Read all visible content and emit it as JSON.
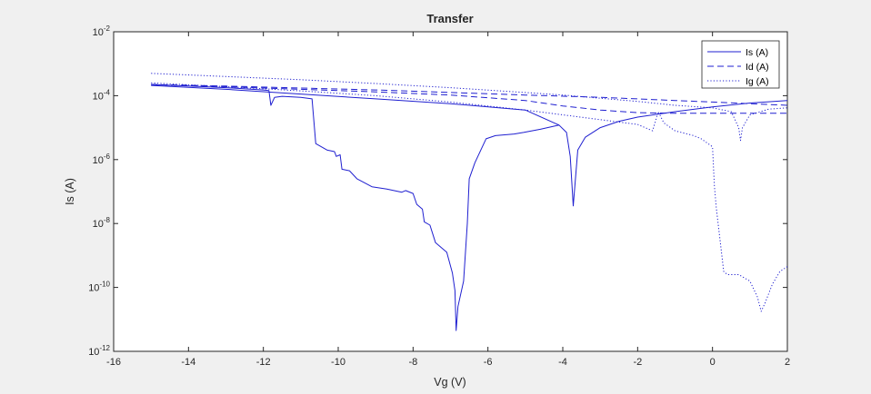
{
  "chart_data": {
    "type": "line",
    "title": "Transfer",
    "xlabel": "Vg (V)",
    "ylabel": "Is (A)",
    "xlim": [
      -16,
      2
    ],
    "ylim_log10": [
      -12,
      -2
    ],
    "yscale": "log",
    "x_ticks": [
      {
        "value": -16,
        "label": "-16"
      },
      {
        "value": -14,
        "label": "-14"
      },
      {
        "value": -12,
        "label": "-12"
      },
      {
        "value": -10,
        "label": "-10"
      },
      {
        "value": -8,
        "label": "-8"
      },
      {
        "value": -6,
        "label": "-6"
      },
      {
        "value": -4,
        "label": "-4"
      },
      {
        "value": -2,
        "label": "-2"
      },
      {
        "value": 0,
        "label": "0"
      },
      {
        "value": 2,
        "label": "2"
      }
    ],
    "y_ticks": [
      {
        "exp": -12,
        "base": "10",
        "power": "-12"
      },
      {
        "exp": -10,
        "base": "10",
        "power": "-10"
      },
      {
        "exp": -8,
        "base": "10",
        "power": "-8"
      },
      {
        "exp": -6,
        "base": "10",
        "power": "-6"
      },
      {
        "exp": -4,
        "base": "10",
        "power": "-4"
      },
      {
        "exp": -2,
        "base": "10",
        "power": "-2"
      }
    ],
    "grid": false,
    "legend_position": "top-right",
    "line_color": "#1f1fd0",
    "series": [
      {
        "name": "Is (A)",
        "style": "solid",
        "paths": [
          [
            [
              -15,
              -3.65
            ],
            [
              -14,
              -3.7
            ],
            [
              -13,
              -3.75
            ],
            [
              -12,
              -3.82
            ],
            [
              -11.85,
              -3.84
            ],
            [
              -11.8,
              -4.3
            ],
            [
              -11.7,
              -4.05
            ],
            [
              -11.5,
              -4.02
            ],
            [
              -11,
              -4.05
            ],
            [
              -10.7,
              -4.1
            ],
            [
              -10.6,
              -5.5
            ],
            [
              -10.3,
              -5.7
            ],
            [
              -10.1,
              -5.75
            ],
            [
              -10.05,
              -5.9
            ],
            [
              -9.95,
              -5.85
            ],
            [
              -9.9,
              -6.3
            ],
            [
              -9.7,
              -6.35
            ],
            [
              -9.5,
              -6.6
            ],
            [
              -9.1,
              -6.85
            ],
            [
              -8.7,
              -6.92
            ],
            [
              -8.3,
              -7.02
            ],
            [
              -8.2,
              -6.97
            ],
            [
              -8,
              -7.06
            ],
            [
              -7.9,
              -7.4
            ],
            [
              -7.75,
              -7.55
            ],
            [
              -7.7,
              -7.95
            ],
            [
              -7.55,
              -8.05
            ],
            [
              -7.4,
              -8.6
            ],
            [
              -7.2,
              -8.8
            ],
            [
              -7.1,
              -8.9
            ],
            [
              -6.95,
              -9.55
            ],
            [
              -6.88,
              -10.1
            ],
            [
              -6.85,
              -11.35
            ],
            [
              -6.8,
              -10.6
            ],
            [
              -6.65,
              -9.8
            ],
            [
              -6.55,
              -8.0
            ],
            [
              -6.5,
              -6.6
            ],
            [
              -6.35,
              -6.1
            ],
            [
              -6.05,
              -5.35
            ],
            [
              -5.8,
              -5.25
            ],
            [
              -5.3,
              -5.2
            ],
            [
              -5.05,
              -5.15
            ],
            [
              -4.6,
              -5.05
            ],
            [
              -4.1,
              -4.92
            ],
            [
              -3.9,
              -5.15
            ],
            [
              -3.8,
              -5.9
            ],
            [
              -3.72,
              -7.45
            ],
            [
              -3.6,
              -5.7
            ],
            [
              -3.4,
              -5.3
            ],
            [
              -3,
              -5.0
            ],
            [
              -2.5,
              -4.8
            ],
            [
              -2,
              -4.67
            ],
            [
              -1,
              -4.5
            ],
            [
              0,
              -4.35
            ],
            [
              1,
              -4.23
            ],
            [
              2,
              -4.15
            ]
          ],
          [
            [
              -15,
              -3.68
            ],
            [
              -13,
              -3.8
            ],
            [
              -11,
              -3.95
            ],
            [
              -9,
              -4.1
            ],
            [
              -7,
              -4.25
            ],
            [
              -5,
              -4.45
            ],
            [
              -4.1,
              -4.92
            ]
          ]
        ]
      },
      {
        "name": "Id (A)",
        "style": "dashed",
        "paths": [
          [
            [
              -15,
              -3.65
            ],
            [
              -13,
              -3.7
            ],
            [
              -11,
              -3.76
            ],
            [
              -9,
              -3.82
            ],
            [
              -7,
              -3.9
            ],
            [
              -5,
              -3.98
            ],
            [
              -3,
              -4.05
            ],
            [
              -1,
              -4.15
            ],
            [
              0,
              -4.2
            ],
            [
              1,
              -4.25
            ],
            [
              2,
              -4.3
            ]
          ],
          [
            [
              -15,
              -3.65
            ],
            [
              -13,
              -3.72
            ],
            [
              -11,
              -3.8
            ],
            [
              -9,
              -3.88
            ],
            [
              -7,
              -3.98
            ],
            [
              -5,
              -4.15
            ],
            [
              -4,
              -4.32
            ],
            [
              -3,
              -4.45
            ],
            [
              -2,
              -4.53
            ],
            [
              -1,
              -4.55
            ],
            [
              0,
              -4.55
            ],
            [
              1,
              -4.55
            ],
            [
              2,
              -4.55
            ]
          ]
        ]
      },
      {
        "name": "Ig (A)",
        "style": "dotted",
        "paths": [
          [
            [
              -15,
              -3.3
            ],
            [
              -13,
              -3.4
            ],
            [
              -11,
              -3.5
            ],
            [
              -9,
              -3.62
            ],
            [
              -7,
              -3.75
            ],
            [
              -5,
              -3.9
            ],
            [
              -4,
              -3.98
            ],
            [
              -3,
              -4.08
            ],
            [
              -2,
              -4.18
            ],
            [
              -1,
              -4.3
            ],
            [
              0,
              -4.38
            ],
            [
              0.5,
              -4.5
            ],
            [
              0.7,
              -5.0
            ],
            [
              0.75,
              -5.4
            ],
            [
              0.8,
              -5.0
            ],
            [
              1,
              -4.6
            ],
            [
              1.5,
              -4.42
            ],
            [
              2,
              -4.38
            ]
          ],
          [
            [
              -15,
              -3.6
            ],
            [
              -13,
              -3.72
            ],
            [
              -11,
              -3.85
            ],
            [
              -9,
              -4.0
            ],
            [
              -7,
              -4.2
            ],
            [
              -5,
              -4.45
            ],
            [
              -4,
              -4.6
            ],
            [
              -3,
              -4.75
            ],
            [
              -2,
              -4.9
            ],
            [
              -1.6,
              -5.1
            ],
            [
              -1.45,
              -4.5
            ],
            [
              -1.3,
              -4.85
            ],
            [
              -1,
              -5.1
            ],
            [
              -0.5,
              -5.25
            ],
            [
              -0.3,
              -5.35
            ],
            [
              0,
              -5.6
            ],
            [
              0.05,
              -6.8
            ],
            [
              0.1,
              -7.5
            ],
            [
              0.2,
              -8.5
            ],
            [
              0.3,
              -9.5
            ],
            [
              0.4,
              -9.6
            ],
            [
              0.7,
              -9.6
            ],
            [
              1,
              -9.8
            ],
            [
              1.2,
              -10.3
            ],
            [
              1.3,
              -10.75
            ],
            [
              1.4,
              -10.5
            ],
            [
              1.6,
              -9.9
            ],
            [
              1.8,
              -9.5
            ],
            [
              2,
              -9.35
            ]
          ]
        ]
      }
    ]
  }
}
